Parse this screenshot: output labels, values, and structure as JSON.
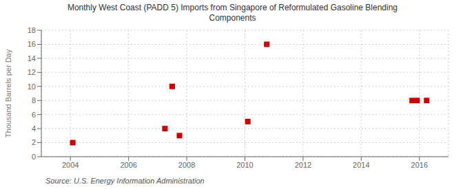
{
  "chart_data": {
    "type": "scatter",
    "title": "Monthly West Coast (PADD 5) Imports from Singapore of Reformulated Gasoline Blending\nComponents",
    "ylabel": "Thousand Barrels per Day",
    "annotations": [
      "Source: U.S. Energy Information Administration"
    ],
    "x": [
      2004.08,
      2007.25,
      2007.5,
      2007.75,
      2010.1,
      2010.75,
      2015.75,
      2015.92,
      2016.25
    ],
    "values": [
      2,
      4,
      10,
      3,
      5,
      16,
      8,
      8,
      8
    ],
    "color": "#cc0000",
    "marker": "square",
    "xlim": [
      2003.0,
      2017.0
    ],
    "ylim": [
      0,
      18
    ],
    "xticks": [
      2004,
      2006,
      2008,
      2010,
      2012,
      2014,
      2016
    ],
    "yticks": [
      0,
      2,
      4,
      6,
      8,
      10,
      12,
      14,
      16,
      18
    ],
    "grid": true
  }
}
